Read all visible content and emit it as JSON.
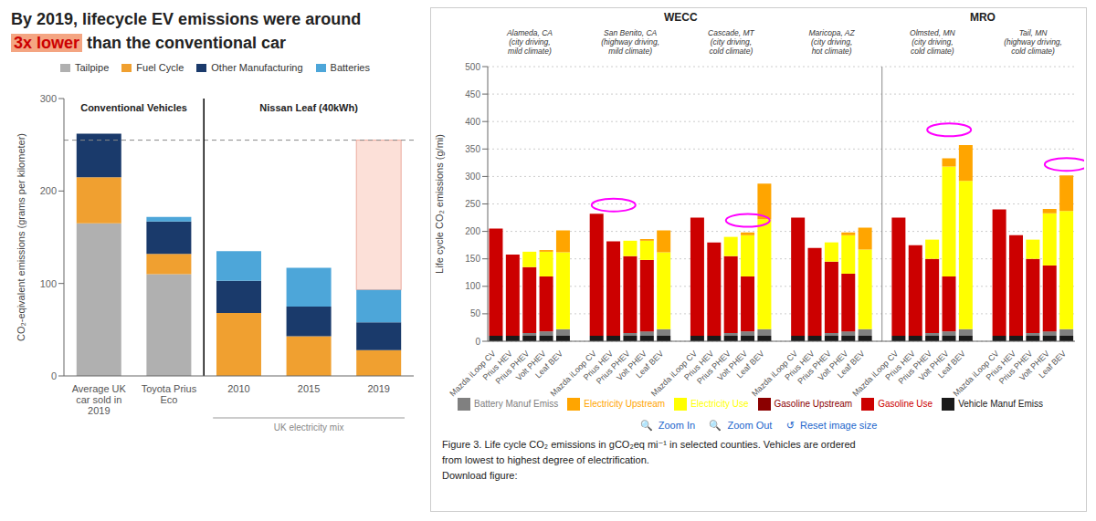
{
  "chart_data": [
    {
      "type": "bar",
      "stacked": true,
      "title": "By 2019, lifecycle EV emissions were around",
      "subtitle": [
        {
          "text": "3x lower",
          "color": "#cc0000",
          "background": "#f4a582"
        },
        {
          "text": " than the conventional car"
        }
      ],
      "ylabel": "CO₂-eqivalent emissions (grams per kilometer)",
      "ylim": [
        0,
        300
      ],
      "yticks": [
        0,
        100,
        200,
        300
      ],
      "categories": [
        "Average UK\ncar sold in\n2019",
        "Toyota Prius\nEco",
        "2010",
        "2015",
        "2019"
      ],
      "groups": [
        "Conventional Vehicles",
        "Conventional Vehicles",
        "Nissan Leaf (40kWh)",
        "Nissan Leaf (40kWh)",
        "Nissan Leaf (40kWh)"
      ],
      "series": [
        {
          "name": "Tailpipe",
          "color": "#b0b0b0",
          "values": [
            165,
            110,
            0,
            0,
            0
          ]
        },
        {
          "name": "Fuel Cycle",
          "color": "#f0a030",
          "values": [
            50,
            22,
            68,
            43,
            28
          ]
        },
        {
          "name": "Other Manufacturing",
          "color": "#1a3a6b",
          "values": [
            47,
            35,
            35,
            32,
            30
          ]
        },
        {
          "name": "Batteries",
          "color": "#4da6d9",
          "values": [
            0,
            5,
            32,
            42,
            35
          ]
        }
      ],
      "range_bars": [
        {
          "category": "2019",
          "low": 93,
          "high": 255,
          "color": "#fce0d8"
        }
      ],
      "reference_lines": [
        {
          "y": 255,
          "line_style": "dashed"
        }
      ],
      "annotations": [
        {
          "text": "UK electricity mix",
          "categories": [
            "2010",
            "2015",
            "2019"
          ]
        }
      ],
      "grid": false
    },
    {
      "type": "bar",
      "stacked": true,
      "grid": true,
      "ylabel": "Life cycle CO₂ emissions (g/mi)",
      "ylim": [
        0,
        500
      ],
      "yticks": [
        0,
        50,
        100,
        150,
        200,
        250,
        300,
        350,
        400,
        450,
        500
      ],
      "categories": [
        "Mazda iLoop CV",
        "Prius HEV",
        "Prius PHEV",
        "Volt PHEV",
        "Leaf BEV",
        "Mazda iLoop CV",
        "Prius HEV",
        "Prius PHEV",
        "Volt PHEV",
        "Leaf BEV",
        "Mazda iLoop CV",
        "Prius HEV",
        "Prius PHEV",
        "Volt PHEV",
        "Leaf BEV",
        "Mazda iLoop CV",
        "Prius HEV",
        "Prius PHEV",
        "Volt PHEV",
        "Leaf BEV",
        "Mazda iLoop CV",
        "Prius HEV",
        "Prius PHEV",
        "Volt PHEV",
        "Leaf BEV",
        "Mazda iLoop CV",
        "Prius HEV",
        "Prius PHEV",
        "Volt PHEV",
        "Leaf BEV"
      ],
      "groups": [
        "Alameda, CA\n(city driving,\nmild climate)",
        "Alameda, CA\n(city driving,\nmild climate)",
        "Alameda, CA\n(city driving,\nmild climate)",
        "Alameda, CA\n(city driving,\nmild climate)",
        "Alameda, CA\n(city driving,\nmild climate)",
        "San Benito, CA\n(highway driving,\nmild climate)",
        "San Benito, CA\n(highway driving,\nmild climate)",
        "San Benito, CA\n(highway driving,\nmild climate)",
        "San Benito, CA\n(highway driving,\nmild climate)",
        "San Benito, CA\n(highway driving,\nmild climate)",
        "Cascade, MT\n(city driving,\ncold climate)",
        "Cascade, MT\n(city driving,\ncold climate)",
        "Cascade, MT\n(city driving,\ncold climate)",
        "Cascade, MT\n(city driving,\ncold climate)",
        "Cascade, MT\n(city driving,\ncold climate)",
        "Maricopa, AZ\n(city driving,\nhot climate)",
        "Maricopa, AZ\n(city driving,\nhot climate)",
        "Maricopa, AZ\n(city driving,\nhot climate)",
        "Maricopa, AZ\n(city driving,\nhot climate)",
        "Maricopa, AZ\n(city driving,\nhot climate)",
        "Olmsted, MN\n(city driving,\ncold climate)",
        "Olmsted, MN\n(city driving,\ncold climate)",
        "Olmsted, MN\n(city driving,\ncold climate)",
        "Olmsted, MN\n(city driving,\ncold climate)",
        "Olmsted, MN\n(city driving,\ncold climate)",
        "Tail, MN\n(highway driving,\ncold climate)",
        "Tail, MN\n(highway driving,\ncold climate)",
        "Tail, MN\n(highway driving,\ncold climate)",
        "Tail, MN\n(highway driving,\ncold climate)",
        "Tail, MN\n(highway driving,\ncold climate)"
      ],
      "regions": [
        "WECC",
        "WECC",
        "WECC",
        "WECC",
        "WECC",
        "WECC",
        "WECC",
        "WECC",
        "WECC",
        "WECC",
        "WECC",
        "WECC",
        "WECC",
        "WECC",
        "WECC",
        "WECC",
        "WECC",
        "WECC",
        "WECC",
        "WECC",
        "MRO",
        "MRO",
        "MRO",
        "MRO",
        "MRO",
        "MRO",
        "MRO",
        "MRO",
        "MRO",
        "MRO"
      ],
      "series": [
        {
          "name": "Vehicle Manuf Emiss",
          "color": "#1a1a1a",
          "values": [
            10,
            10,
            10,
            10,
            10,
            10,
            10,
            10,
            10,
            10,
            10,
            10,
            10,
            10,
            10,
            10,
            10,
            10,
            10,
            10,
            10,
            10,
            10,
            10,
            10,
            10,
            10,
            10,
            10,
            10
          ]
        },
        {
          "name": "Battery Manuf Emiss",
          "color": "#808080",
          "values": [
            0,
            0,
            5,
            8,
            12,
            0,
            0,
            5,
            8,
            12,
            0,
            0,
            5,
            8,
            12,
            0,
            0,
            5,
            8,
            12,
            0,
            0,
            5,
            8,
            12,
            0,
            0,
            5,
            8,
            12
          ]
        },
        {
          "name": "Gasoline Use",
          "color": "#cc0000",
          "values": [
            195,
            148,
            120,
            100,
            0,
            222,
            172,
            140,
            130,
            0,
            215,
            170,
            140,
            100,
            0,
            215,
            160,
            130,
            105,
            0,
            215,
            165,
            135,
            100,
            0,
            230,
            183,
            135,
            120,
            0
          ]
        },
        {
          "name": "Gasoline Upstream",
          "color": "#8b0000",
          "values": [
            0,
            0,
            0,
            0,
            0,
            0,
            0,
            0,
            0,
            0,
            0,
            0,
            0,
            0,
            0,
            0,
            0,
            0,
            0,
            0,
            0,
            0,
            0,
            0,
            0,
            0,
            0,
            0,
            0,
            0
          ]
        },
        {
          "name": "Electricity Use",
          "color": "#ffff00",
          "values": [
            0,
            0,
            28,
            45,
            140,
            0,
            0,
            28,
            35,
            140,
            0,
            0,
            35,
            75,
            200,
            0,
            0,
            35,
            70,
            145,
            0,
            0,
            35,
            200,
            270,
            0,
            0,
            35,
            95,
            215
          ]
        },
        {
          "name": "Electricity Upstream",
          "color": "#ffa500",
          "values": [
            0,
            0,
            0,
            3,
            40,
            0,
            0,
            0,
            3,
            40,
            0,
            0,
            0,
            5,
            65,
            0,
            0,
            0,
            5,
            40,
            0,
            0,
            0,
            15,
            65,
            0,
            0,
            0,
            8,
            65
          ]
        }
      ],
      "markers": [
        {
          "group": "San Benito, CA\n(highway driving,\nmild climate)",
          "category": "Prius HEV",
          "y": 248,
          "color": "#ff00ff"
        },
        {
          "group": "Cascade, MT\n(city driving,\ncold climate)",
          "category": "Volt PHEV",
          "y": 220,
          "color": "#ff00ff"
        },
        {
          "group": "Olmsted, MN\n(city driving,\ncold climate)",
          "category": "Volt PHEV",
          "y": 385,
          "color": "#ff00ff"
        },
        {
          "group": "Tail, MN\n(highway driving,\ncold climate)",
          "category": "Leaf BEV",
          "y": 322,
          "color": "#ff00ff"
        }
      ],
      "annotations": [
        {
          "text": "🔍  Zoom In     🔍  Zoom Out     ↺  Reset image size",
          "color": "#2266cc"
        },
        {
          "text": "Figure 3. Life cycle CO₂ emissions in gCO₂eq mi⁻¹ in selected counties. Vehicles are ordered"
        },
        {
          "text": "from lowest to highest degree of electrification."
        },
        {
          "text": "Download figure:"
        }
      ]
    }
  ]
}
